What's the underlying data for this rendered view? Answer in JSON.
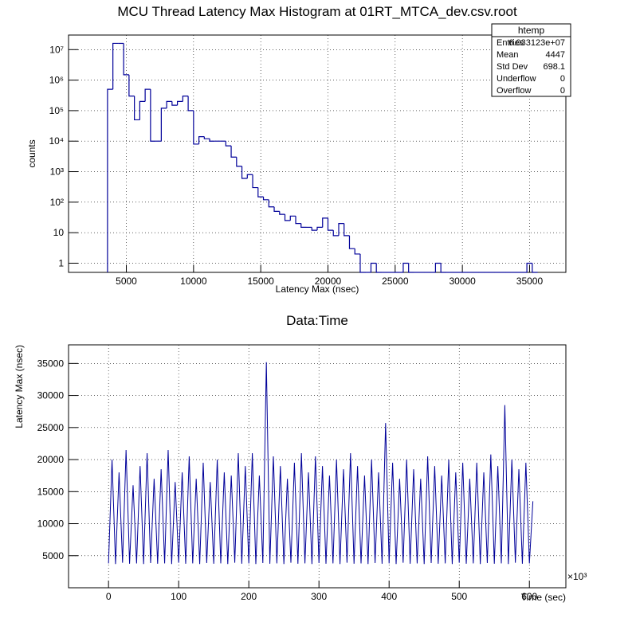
{
  "chart_data": [
    {
      "type": "histogram",
      "title": "MCU Thread Latency Max Histogram at 01RT_MTCA_dev.csv.root",
      "x_label": "Latency Max (nsec)",
      "y_label": "counts",
      "color": "#000099",
      "log_y": true,
      "grid": true,
      "bins": [
        3600,
        4000,
        4400,
        4800,
        5200,
        5600,
        6000,
        6400,
        6800,
        7200,
        7600,
        8000,
        8400,
        8800,
        9200,
        9600,
        10000,
        10400,
        10800,
        11200,
        11600,
        12000,
        12400,
        12800,
        13200,
        13600,
        14000,
        14400,
        14800,
        15200,
        15600,
        16000,
        16400,
        16800,
        17200,
        17600,
        18000,
        18400,
        18800,
        19200,
        19600,
        20000,
        20400,
        20800,
        21200,
        21600,
        22000,
        22400,
        22800,
        23200,
        23600,
        24000,
        24400,
        24800,
        25200,
        25600,
        26000,
        26400,
        26800,
        27200,
        27600,
        28000,
        28400,
        28800,
        29200,
        29600,
        30000,
        30400,
        30800,
        31200,
        31600,
        32000,
        32400,
        32800,
        33200,
        33600,
        34000,
        34400,
        34800,
        35200,
        35600
      ],
      "values": [
        500000,
        16000000,
        16000000,
        1500000,
        300000,
        50000,
        200000,
        500000,
        10000,
        10000,
        120000,
        200000,
        150000,
        200000,
        300000,
        100000,
        8000,
        14000,
        12000,
        10000,
        10000,
        10000,
        7000,
        3000,
        1500,
        600,
        800,
        300,
        150,
        120,
        70,
        50,
        40,
        25,
        35,
        20,
        15,
        15,
        12,
        15,
        30,
        12,
        8,
        20,
        8,
        3,
        2,
        0,
        0,
        1,
        0,
        0,
        0,
        0,
        0,
        1,
        0,
        0,
        0,
        0,
        0,
        1,
        0,
        0,
        0,
        0,
        0,
        0,
        0,
        0,
        0,
        0,
        0,
        0,
        0,
        0,
        0,
        0,
        1,
        0
      ],
      "xlim": [
        700,
        37700
      ],
      "xticks": [
        5000,
        10000,
        15000,
        20000,
        25000,
        30000,
        35000
      ],
      "ylim": [
        0.5,
        30000000
      ],
      "yticks": [
        1,
        10,
        {
          "value": 100,
          "label": "10²"
        },
        {
          "value": 1000,
          "label": "10³"
        },
        {
          "value": 10000,
          "label": "10⁴"
        },
        {
          "value": 100000,
          "label": "10⁵"
        },
        {
          "value": 1000000,
          "label": "10⁶"
        },
        {
          "value": 10000000,
          "label": "10⁷"
        }
      ],
      "stats": {
        "title": "htemp",
        "names": [
          "Entries",
          "Mean",
          "Std Dev",
          "Underflow",
          "Overflow"
        ],
        "values": [
          "6.033123e+07",
          "4447",
          "698.1",
          "0",
          "0"
        ]
      }
    },
    {
      "type": "line",
      "title": "Data:Time",
      "x_label": "Time (sec)",
      "y_label": "Latency Max (nsec)",
      "x_exponent": "×10³",
      "color": "#000099",
      "grid": true,
      "x": [
        0,
        5,
        10,
        15,
        20,
        25,
        30,
        35,
        40,
        45,
        50,
        55,
        60,
        65,
        70,
        75,
        80,
        85,
        90,
        95,
        100,
        105,
        110,
        115,
        120,
        125,
        130,
        135,
        140,
        145,
        150,
        155,
        160,
        165,
        170,
        175,
        180,
        185,
        190,
        195,
        200,
        205,
        210,
        215,
        220,
        225,
        230,
        235,
        240,
        245,
        250,
        255,
        260,
        265,
        270,
        275,
        280,
        285,
        290,
        295,
        300,
        305,
        310,
        315,
        320,
        325,
        330,
        335,
        340,
        345,
        350,
        355,
        360,
        365,
        370,
        375,
        380,
        385,
        390,
        395,
        400,
        405,
        410,
        415,
        420,
        425,
        430,
        435,
        440,
        445,
        450,
        455,
        460,
        465,
        470,
        475,
        480,
        485,
        490,
        495,
        500,
        505,
        510,
        515,
        520,
        525,
        530,
        535,
        540,
        545,
        550,
        555,
        560,
        565,
        570,
        575,
        580,
        585,
        590,
        595,
        600,
        605
      ],
      "values": [
        3800,
        20000,
        3700,
        18000,
        3900,
        21500,
        3750,
        16000,
        3800,
        19000,
        3700,
        21000,
        3850,
        17000,
        3750,
        18500,
        3800,
        21500,
        3700,
        16500,
        3900,
        18000,
        3750,
        20500,
        3800,
        17000,
        3700,
        19500,
        3850,
        16500,
        3750,
        20000,
        3800,
        18000,
        3700,
        17500,
        3900,
        21000,
        3750,
        19000,
        3800,
        21000,
        3700,
        17500,
        3850,
        35200,
        3750,
        20500,
        3800,
        19000,
        3700,
        17000,
        3900,
        19500,
        3750,
        21000,
        3800,
        18000,
        3700,
        20500,
        3850,
        19000,
        3750,
        17500,
        3800,
        20000,
        3700,
        18500,
        3900,
        21000,
        3750,
        19000,
        3800,
        17500,
        3700,
        20000,
        3850,
        18000,
        3750,
        25700,
        3800,
        19500,
        3700,
        17000,
        3900,
        20000,
        3750,
        18500,
        3800,
        17000,
        3700,
        20500,
        3850,
        19000,
        3750,
        17500,
        3800,
        20000,
        3700,
        18000,
        3900,
        19500,
        3750,
        17000,
        3800,
        19500,
        3700,
        18000,
        3850,
        20800,
        3750,
        19000,
        3800,
        28500,
        3700,
        20000,
        3900,
        18500,
        3750,
        19500,
        3800,
        13500
      ],
      "xlim": [
        -57,
        652
      ],
      "xticks": [
        0,
        100,
        200,
        300,
        400,
        500,
        600
      ],
      "ylim": [
        0,
        37900
      ],
      "yticks": [
        5000,
        10000,
        15000,
        20000,
        25000,
        30000,
        35000
      ]
    }
  ]
}
